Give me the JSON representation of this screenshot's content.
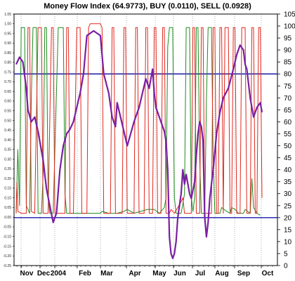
{
  "chart_data": {
    "type": "line",
    "title": "Money Flow Index (64.9773), BUY (0.0110), SELL (0.0928)",
    "x_months": [
      "Nov",
      "Dec",
      "2004",
      "Feb",
      "Mar",
      "Apr",
      "May",
      "Jun",
      "Jul",
      "Aug",
      "Sep",
      "Oct"
    ],
    "y_right": {
      "min": 0,
      "max": 105,
      "ticks": [
        0,
        5,
        10,
        15,
        20,
        25,
        30,
        35,
        40,
        45,
        50,
        55,
        60,
        65,
        70,
        75,
        80,
        85,
        90,
        95,
        100,
        105
      ]
    },
    "y_left": {
      "min": -0.25,
      "max": 1.05,
      "ticks": [
        "-0.25",
        "-0.20",
        "-0.15",
        "-0.10",
        "-0.05",
        "0.00",
        "0.05",
        "0.10",
        "0.15",
        "0.20",
        "0.25",
        "0.30",
        "0.35",
        "0.40",
        "0.45",
        "0.50",
        "0.55",
        "0.60",
        "0.65",
        "0.70",
        "0.75",
        "0.80",
        "0.85",
        "0.90",
        "0.95",
        "1.00",
        "1.05"
      ]
    },
    "reference_lines": [
      80,
      20
    ],
    "series": [
      {
        "name": "Money Flow Index",
        "color": "#7a1fa2",
        "points": [
          [
            0,
            84
          ],
          [
            2,
            87
          ],
          [
            4,
            85
          ],
          [
            6,
            74
          ],
          [
            7,
            65
          ],
          [
            9,
            60
          ],
          [
            11,
            62
          ],
          [
            13,
            56
          ],
          [
            16,
            44
          ],
          [
            18,
            32
          ],
          [
            20,
            25
          ],
          [
            22,
            18
          ],
          [
            24,
            22
          ],
          [
            26,
            40
          ],
          [
            28,
            50
          ],
          [
            30,
            55
          ],
          [
            32,
            57
          ],
          [
            34,
            60
          ],
          [
            36,
            66
          ],
          [
            38,
            72
          ],
          [
            40,
            80
          ],
          [
            42,
            96
          ],
          [
            46,
            98
          ],
          [
            50,
            96
          ],
          [
            52,
            80
          ],
          [
            55,
            72
          ],
          [
            57,
            62
          ],
          [
            59,
            58
          ],
          [
            60,
            68
          ],
          [
            62,
            62
          ],
          [
            64,
            56
          ],
          [
            66,
            50
          ],
          [
            68,
            55
          ],
          [
            70,
            60
          ],
          [
            73,
            66
          ],
          [
            75,
            72
          ],
          [
            77,
            78
          ],
          [
            79,
            74
          ],
          [
            81,
            82
          ],
          [
            82,
            72
          ],
          [
            83,
            66
          ],
          [
            86,
            60
          ],
          [
            88,
            56
          ],
          [
            89,
            52
          ],
          [
            90,
            40
          ],
          [
            91,
            12
          ],
          [
            92,
            5
          ],
          [
            93,
            3
          ],
          [
            94,
            5
          ],
          [
            95,
            10
          ],
          [
            96,
            20
          ],
          [
            98,
            30
          ],
          [
            99,
            40
          ],
          [
            100,
            34
          ],
          [
            101,
            38
          ],
          [
            103,
            30
          ],
          [
            104,
            28
          ],
          [
            106,
            35
          ],
          [
            107,
            46
          ],
          [
            108,
            55
          ],
          [
            109,
            60
          ],
          [
            110,
            58
          ],
          [
            111,
            52
          ],
          [
            112,
            20
          ],
          [
            113,
            12
          ],
          [
            114,
            18
          ],
          [
            115,
            28
          ],
          [
            117,
            40
          ],
          [
            119,
            55
          ],
          [
            121,
            64
          ],
          [
            123,
            70
          ],
          [
            126,
            74
          ],
          [
            129,
            82
          ],
          [
            131,
            88
          ],
          [
            133,
            92
          ],
          [
            135,
            90
          ],
          [
            136,
            84
          ],
          [
            137,
            82
          ],
          [
            139,
            70
          ],
          [
            141,
            62
          ],
          [
            143,
            66
          ],
          [
            145,
            68
          ],
          [
            146,
            64
          ]
        ]
      },
      {
        "name": "BUY",
        "color": "#1e8b1e",
        "points": [
          [
            0,
            0.02
          ],
          [
            1,
            0.35
          ],
          [
            2,
            0.06
          ],
          [
            3,
            0.98
          ],
          [
            5,
            0.98
          ],
          [
            6,
            0.06
          ],
          [
            8,
            0.02
          ],
          [
            9,
            0.62
          ],
          [
            10,
            0.98
          ],
          [
            12,
            0.98
          ],
          [
            13,
            0.02
          ],
          [
            15,
            0.02
          ],
          [
            16,
            0.22
          ],
          [
            17,
            0.98
          ],
          [
            18,
            0.98
          ],
          [
            19,
            0.1
          ],
          [
            20,
            0.02
          ],
          [
            22,
            0.02
          ],
          [
            25,
            0.98
          ],
          [
            28,
            0.98
          ],
          [
            29,
            0.12
          ],
          [
            30,
            0.02
          ],
          [
            40,
            0.02
          ],
          [
            50,
            0.02
          ],
          [
            51,
            0.03
          ],
          [
            55,
            0.02
          ],
          [
            60,
            0.02
          ],
          [
            64,
            0.03
          ],
          [
            66,
            0.04
          ],
          [
            70,
            0.02
          ],
          [
            74,
            0.03
          ],
          [
            78,
            0.04
          ],
          [
            82,
            0.04
          ],
          [
            85,
            0.02
          ],
          [
            88,
            0.05
          ],
          [
            89,
            0.1
          ],
          [
            90,
            0.88
          ],
          [
            91,
            0.98
          ],
          [
            93,
            0.98
          ],
          [
            94,
            0.1
          ],
          [
            95,
            0.02
          ],
          [
            97,
            0.02
          ],
          [
            98,
            0.02
          ],
          [
            100,
            0.12
          ],
          [
            101,
            0.98
          ],
          [
            103,
            0.98
          ],
          [
            104,
            0.1
          ],
          [
            105,
            0.03
          ],
          [
            106,
            0.1
          ],
          [
            107,
            0.98
          ],
          [
            108,
            0.98
          ],
          [
            109,
            0.3
          ],
          [
            110,
            0.02
          ],
          [
            112,
            0.02
          ],
          [
            113,
            0.6
          ],
          [
            114,
            0.98
          ],
          [
            116,
            0.98
          ],
          [
            117,
            0.3
          ],
          [
            118,
            0.02
          ],
          [
            121,
            0.02
          ],
          [
            122,
            0.05
          ],
          [
            125,
            0.03
          ],
          [
            127,
            0.02
          ],
          [
            128,
            0.05
          ],
          [
            130,
            0.04
          ],
          [
            132,
            0.02
          ],
          [
            135,
            0.02
          ],
          [
            136,
            0.04
          ],
          [
            139,
            0.02
          ],
          [
            140,
            0.2
          ],
          [
            141,
            0.05
          ],
          [
            143,
            0.02
          ],
          [
            145,
            0.01
          ]
        ]
      },
      {
        "name": "SELL",
        "color": "#e0281e",
        "points": [
          [
            0,
            0.02
          ],
          [
            0.5,
            0.18
          ],
          [
            1,
            0.03
          ],
          [
            3,
            0.02
          ],
          [
            6,
            0.02
          ],
          [
            7,
            0.98
          ],
          [
            8,
            0.98
          ],
          [
            9,
            0.03
          ],
          [
            11,
            0.02
          ],
          [
            13,
            0.98
          ],
          [
            15,
            0.98
          ],
          [
            16,
            0.02
          ],
          [
            19,
            0.02
          ],
          [
            21,
            0.98
          ],
          [
            22,
            0.98
          ],
          [
            23,
            0.02
          ],
          [
            26,
            0.02
          ],
          [
            29,
            0.02
          ],
          [
            30,
            0.98
          ],
          [
            31,
            0.98
          ],
          [
            32,
            0.02
          ],
          [
            34,
            0.02
          ],
          [
            36,
            0.98
          ],
          [
            38,
            0.98
          ],
          [
            39,
            0.02
          ],
          [
            42,
            0.02
          ],
          [
            43,
            0.98
          ],
          [
            44,
            1.0
          ],
          [
            48,
            1.0
          ],
          [
            50,
            1.0
          ],
          [
            51,
            0.98
          ],
          [
            52,
            0.02
          ],
          [
            56,
            0.02
          ],
          [
            57,
            0.98
          ],
          [
            58,
            0.98
          ],
          [
            59,
            0.02
          ],
          [
            63,
            0.02
          ],
          [
            64,
            0.98
          ],
          [
            65,
            0.98
          ],
          [
            66,
            0.02
          ],
          [
            70,
            0.02
          ],
          [
            71,
            0.98
          ],
          [
            72,
            0.98
          ],
          [
            73,
            0.02
          ],
          [
            76,
            0.02
          ],
          [
            77,
            0.98
          ],
          [
            78,
            0.98
          ],
          [
            79,
            0.02
          ],
          [
            81,
            0.02
          ],
          [
            82,
            0.98
          ],
          [
            83,
            0.98
          ],
          [
            84,
            0.02
          ],
          [
            86,
            0.02
          ],
          [
            87,
            0.98
          ],
          [
            88,
            0.98
          ],
          [
            89,
            0.02
          ],
          [
            91,
            0.02
          ],
          [
            92,
            0.04
          ],
          [
            94,
            0.02
          ],
          [
            96,
            0.05
          ],
          [
            98,
            0.08
          ],
          [
            99,
            0.1
          ],
          [
            100,
            0.02
          ],
          [
            104,
            0.02
          ],
          [
            105,
            0.98
          ],
          [
            106,
            0.98
          ],
          [
            107,
            0.02
          ],
          [
            109,
            0.02
          ],
          [
            110,
            0.98
          ],
          [
            111,
            0.98
          ],
          [
            112,
            0.02
          ],
          [
            114,
            0.02
          ],
          [
            116,
            0.02
          ],
          [
            117,
            0.98
          ],
          [
            118,
            0.98
          ],
          [
            119,
            0.02
          ],
          [
            120,
            0.02
          ],
          [
            121,
            0.98
          ],
          [
            122,
            0.98
          ],
          [
            123,
            0.02
          ],
          [
            124,
            0.98
          ],
          [
            126,
            0.98
          ],
          [
            127,
            0.02
          ],
          [
            128,
            0.02
          ],
          [
            129,
            0.98
          ],
          [
            130,
            0.98
          ],
          [
            131,
            0.02
          ],
          [
            133,
            0.02
          ],
          [
            134,
            0.98
          ],
          [
            136,
            0.98
          ],
          [
            137,
            0.02
          ],
          [
            139,
            0.02
          ],
          [
            140,
            0.98
          ],
          [
            141,
            0.98
          ],
          [
            142,
            0.02
          ],
          [
            143,
            0.02
          ],
          [
            144,
            0.98
          ],
          [
            145,
            0.98
          ],
          [
            146,
            0.1
          ]
        ]
      }
    ]
  }
}
